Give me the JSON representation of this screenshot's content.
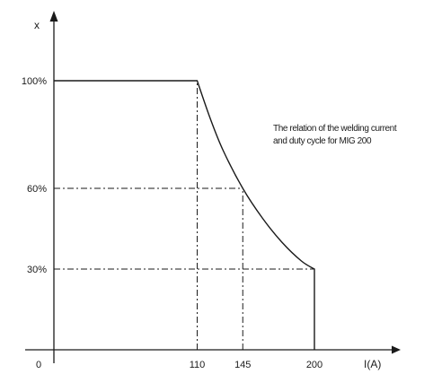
{
  "chart_data": {
    "type": "line",
    "title": "",
    "annotation_lines": [
      "The relation of the welding current",
      "and duty cycle for MIG 200"
    ],
    "xlabel": "I(A)",
    "ylabel": "x",
    "origin_label": "0",
    "xlim": [
      0,
      260
    ],
    "ylim": [
      0,
      120
    ],
    "x_ticks": [
      {
        "value": 110,
        "label": "110"
      },
      {
        "value": 145,
        "label": "145"
      },
      {
        "value": 200,
        "label": "200"
      }
    ],
    "y_ticks": [
      {
        "value": 100,
        "label": "100%"
      },
      {
        "value": 60,
        "label": "60%"
      },
      {
        "value": 30,
        "label": "30%"
      }
    ],
    "series": [
      {
        "points": [
          {
            "x": 0,
            "y": 100
          },
          {
            "x": 110,
            "y": 100
          },
          {
            "x": 120,
            "y": 86
          },
          {
            "x": 130,
            "y": 74
          },
          {
            "x": 145,
            "y": 60
          },
          {
            "x": 160,
            "y": 49
          },
          {
            "x": 175,
            "y": 40
          },
          {
            "x": 190,
            "y": 33
          },
          {
            "x": 200,
            "y": 30
          },
          {
            "x": 200,
            "y": 0
          }
        ]
      }
    ],
    "reference_lines": [
      {
        "from": {
          "x": 0,
          "y": 60
        },
        "to": {
          "x": 145,
          "y": 60
        }
      },
      {
        "from": {
          "x": 145,
          "y": 0
        },
        "to": {
          "x": 145,
          "y": 60
        }
      },
      {
        "from": {
          "x": 0,
          "y": 30
        },
        "to": {
          "x": 200,
          "y": 30
        }
      },
      {
        "from": {
          "x": 110,
          "y": 0
        },
        "to": {
          "x": 110,
          "y": 100
        }
      }
    ],
    "grid": false,
    "legend": "none",
    "line_color": "#1a1a1a"
  }
}
